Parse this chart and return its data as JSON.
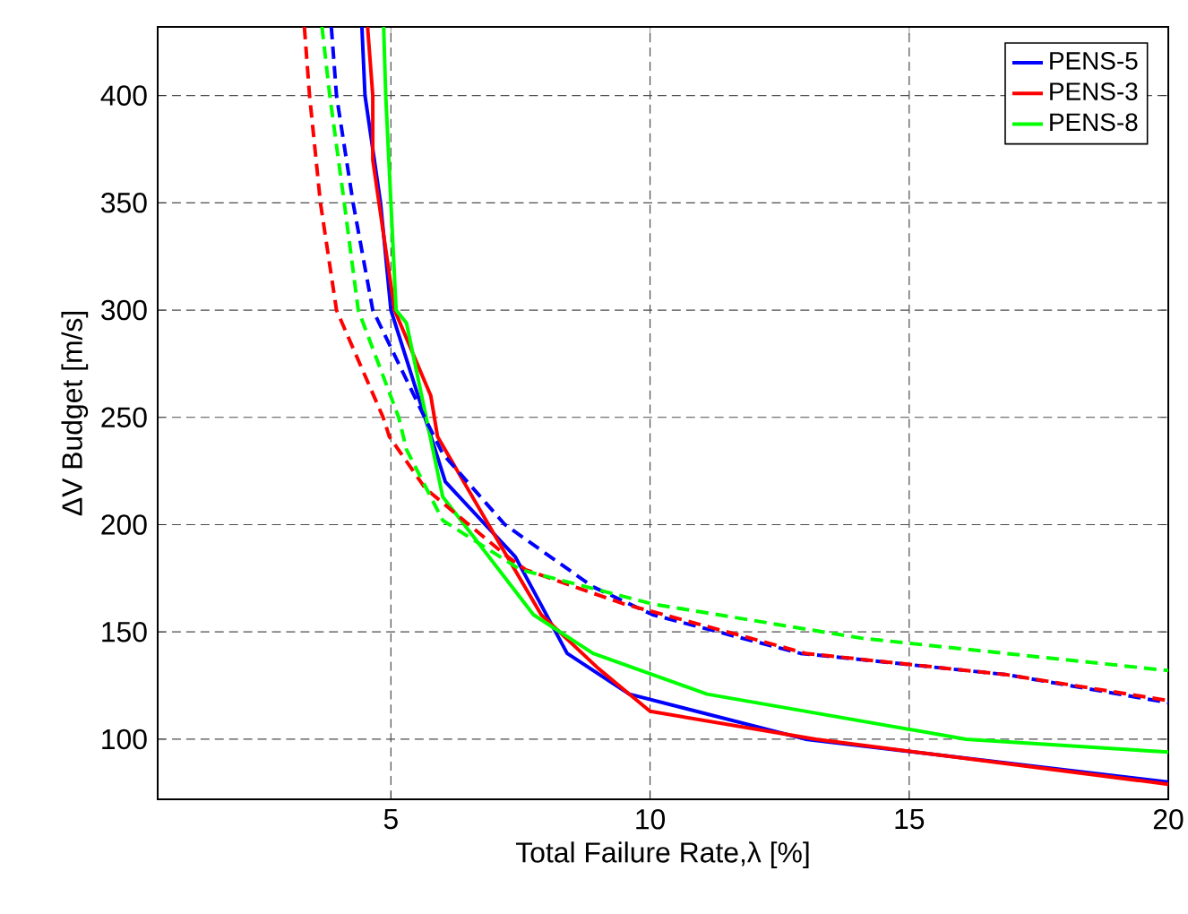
{
  "chart_data": {
    "type": "line",
    "xlabel": "Total Failure Rate,λ [%]",
    "ylabel": "ΔV Budget [m/s]",
    "xlim": [
      0.5,
      20
    ],
    "ylim": [
      72,
      432
    ],
    "xticks": [
      5,
      10,
      15,
      20
    ],
    "yticks": [
      100,
      150,
      200,
      250,
      300,
      350,
      400
    ],
    "grid": true,
    "legend": "top right",
    "series": [
      {
        "name": "PENS-5",
        "color": "#0000ff",
        "line_style": "solid",
        "x": [
          4.44,
          4.5,
          4.8,
          5.0,
          6.05,
          7.4,
          8.4,
          9.6,
          13.0,
          20
        ],
        "values": [
          432,
          400,
          350,
          300,
          220,
          185,
          140,
          121,
          100,
          80
        ]
      },
      {
        "name": "PENS-3",
        "color": "#ff0000",
        "line_style": "solid",
        "x": [
          4.55,
          4.65,
          4.65,
          5.07,
          5.77,
          5.9,
          7.1,
          7.9,
          9.0,
          10.0,
          13.2,
          20
        ],
        "values": [
          432,
          400,
          370,
          300,
          260,
          241,
          191,
          158,
          133,
          113,
          100,
          79
        ]
      },
      {
        "name": "PENS-8",
        "color": "#00ff00",
        "line_style": "solid",
        "x": [
          4.86,
          4.9,
          5.1,
          5.3,
          6.0,
          7.75,
          8.9,
          11.1,
          16.1,
          20
        ],
        "values": [
          432,
          400,
          300,
          294,
          213,
          158,
          140,
          121,
          100,
          94
        ]
      },
      {
        "color": "#0000ff",
        "line_style": "dashed",
        "x": [
          3.85,
          3.95,
          4.27,
          4.65,
          5.65,
          6.0,
          7.2,
          8.9,
          10.05,
          12.9,
          16.9,
          20
        ],
        "values": [
          432,
          400,
          350,
          300,
          250,
          233,
          200,
          171,
          158,
          140,
          130,
          117
        ]
      },
      {
        "color": "#ff0000",
        "line_style": "dashed",
        "x": [
          3.33,
          3.43,
          3.64,
          3.95,
          4.85,
          4.97,
          5.66,
          7.2,
          7.6,
          9.5,
          11.8,
          13.0,
          16.9,
          20
        ],
        "values": [
          432,
          400,
          350,
          300,
          250,
          241,
          217,
          186,
          179,
          163,
          148,
          140,
          130,
          118
        ]
      },
      {
        "color": "#00ff00",
        "line_style": "dashed",
        "x": [
          3.67,
          3.82,
          4.1,
          4.37,
          5.15,
          5.3,
          6.0,
          7.5,
          10.05,
          14.1,
          20
        ],
        "values": [
          432,
          400,
          350,
          300,
          250,
          235,
          202,
          179,
          163,
          147,
          132
        ]
      }
    ]
  }
}
